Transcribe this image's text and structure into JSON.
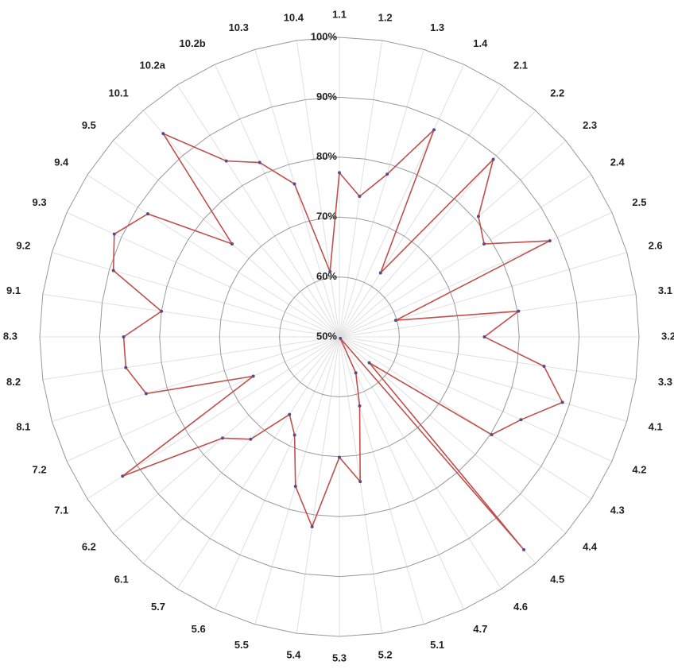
{
  "chart_data": {
    "type": "radar",
    "categories": [
      "1.1",
      "1.2",
      "1.3",
      "1.4",
      "2.1",
      "2.2",
      "2.3",
      "2.4",
      "2.5",
      "2.6",
      "3.1",
      "3.2",
      "3.3",
      "4.1",
      "4.2",
      "4.3",
      "4.4",
      "4.5",
      "4.6",
      "4.7",
      "5.1",
      "5.2",
      "5.3",
      "5.4",
      "5.5",
      "5.6",
      "5.7",
      "6.1",
      "6.2",
      "7.1",
      "7.2",
      "8.1",
      "8.2",
      "8.3",
      "9.1",
      "9.2",
      "9.3",
      "9.4",
      "9.5",
      "10.1",
      "10.2a",
      "10.2b",
      "10.3",
      "10.4"
    ],
    "series": [
      {
        "color": "#c0504d",
        "marker_color": "#5b4a8a",
        "values": [
          77.4,
          73.7,
          78.3,
          88,
          62.7,
          89.2,
          80.7,
          78.7,
          88.6,
          59.8,
          80.2,
          74.2,
          84.5,
          88.8,
          83.3,
          80.2,
          56.6,
          97,
          50.3,
          56.6,
          62,
          74.4,
          70.1,
          82,
          76,
          68,
          65.4,
          72.6,
          75.8,
          93,
          65.8,
          83.6,
          86,
          86,
          80,
          89.3,
          91.3,
          88,
          73.7,
          94.9,
          84.9,
          82,
          76.6,
          61
        ]
      }
    ],
    "ylim": [
      50,
      100
    ],
    "yticks": [
      {
        "value": 50,
        "label": "50%"
      },
      {
        "value": 60,
        "label": "60%"
      },
      {
        "value": 70,
        "label": "70%"
      },
      {
        "value": 80,
        "label": "80%"
      },
      {
        "value": 90,
        "label": "90%"
      },
      {
        "value": 100,
        "label": "100%"
      }
    ],
    "grid": true
  }
}
